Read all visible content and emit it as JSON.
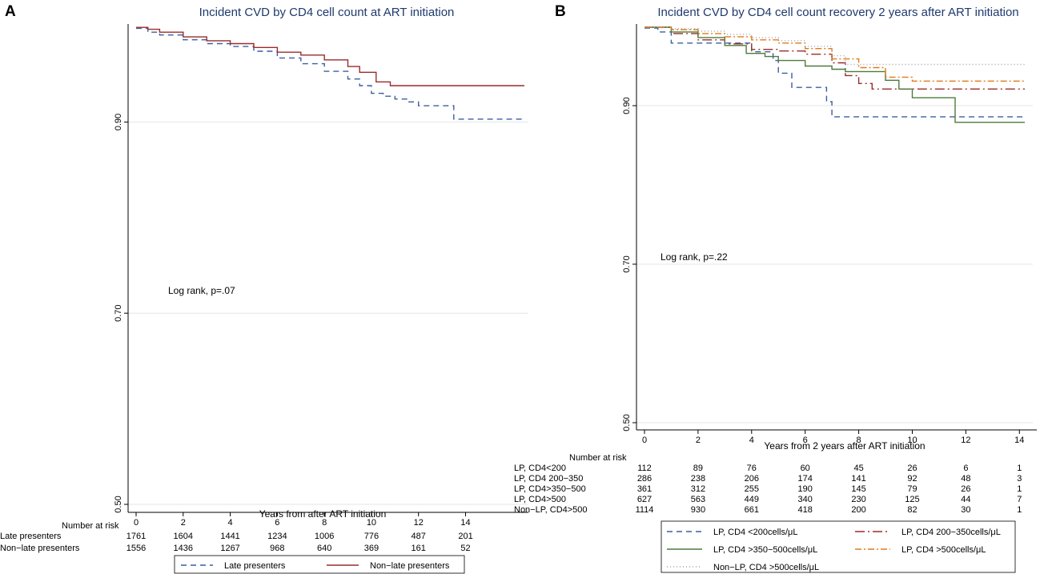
{
  "chart_data": [
    {
      "panel": "A",
      "type": "line",
      "subtype": "kaplan-meier",
      "title": "Incident CVD by CD4 cell count at ART initiation",
      "xlabel": "Years from after ART initiation",
      "ylabel": "",
      "xlim": [
        0,
        16.5
      ],
      "ylim": [
        0.5,
        1.0
      ],
      "xticks": [
        0,
        2,
        4,
        6,
        8,
        10,
        12,
        14
      ],
      "yticks": [
        0.5,
        0.7,
        0.9
      ],
      "ytick_labels": [
        "0.50",
        "0.70",
        "0.90"
      ],
      "annotation": "Log rank, p=.07",
      "series": [
        {
          "name": "Late presenters",
          "color": "#3b5fa0",
          "dash": "7,5",
          "x": [
            0,
            0.5,
            1,
            2,
            3,
            4,
            5,
            6,
            7,
            8,
            9,
            9.5,
            10,
            10.5,
            11,
            11.5,
            12,
            13,
            13.5,
            16.5
          ],
          "y": [
            0.998,
            0.994,
            0.991,
            0.986,
            0.982,
            0.979,
            0.974,
            0.967,
            0.961,
            0.953,
            0.945,
            0.938,
            0.93,
            0.927,
            0.924,
            0.921,
            0.917,
            0.917,
            0.903,
            0.903
          ]
        },
        {
          "name": "Non-late presenters",
          "color": "#9b2b2b",
          "dash": "",
          "x": [
            0,
            0.5,
            1,
            2,
            3,
            4,
            5,
            6,
            7,
            8,
            9,
            9.5,
            10,
            10.2,
            10.8,
            16.5
          ],
          "y": [
            0.999,
            0.997,
            0.994,
            0.989,
            0.985,
            0.982,
            0.978,
            0.973,
            0.97,
            0.965,
            0.958,
            0.952,
            0.952,
            0.942,
            0.938,
            0.938
          ]
        }
      ],
      "risk_table": {
        "heading": "Number at risk",
        "rows": [
          {
            "label": "Late presenters",
            "values": [
              "1761",
              "1604",
              "1441",
              "1234",
              "1006",
              "776",
              "487",
              "201"
            ]
          },
          {
            "label": "Non−late presenters",
            "values": [
              "1556",
              "1436",
              "1267",
              "968",
              "640",
              "369",
              "161",
              "52"
            ]
          }
        ]
      },
      "legend": [
        "Late presenters",
        "Non−late presenters"
      ]
    },
    {
      "panel": "B",
      "type": "line",
      "subtype": "kaplan-meier",
      "title": "Incident CVD by CD4 cell count recovery 2 years after ART initiation",
      "xlabel": "Years from 2 years after ART initiation",
      "ylabel": "",
      "xlim": [
        0,
        14.5
      ],
      "ylim": [
        0.5,
        1.0
      ],
      "xticks": [
        0,
        2,
        4,
        6,
        8,
        10,
        12,
        14
      ],
      "yticks": [
        0.5,
        0.7,
        0.9
      ],
      "ytick_labels": [
        "0.50",
        "0.70",
        "0.90"
      ],
      "annotation": "Log rank, p=.22",
      "series": [
        {
          "name": "LP, CD4 <200cells/μL",
          "color": "#3b5fa0",
          "dash": "7,5",
          "x": [
            0,
            0.5,
            1,
            3,
            4,
            4.8,
            5,
            5.5,
            6.5,
            6.8,
            7,
            14.2
          ],
          "y": [
            0.998,
            0.993,
            0.979,
            0.979,
            0.968,
            0.957,
            0.941,
            0.923,
            0.923,
            0.905,
            0.886,
            0.886
          ]
        },
        {
          "name": "LP, CD4 200−350cells/μL",
          "color": "#9b2b2b",
          "dash": "12,4,2,4",
          "x": [
            0,
            1,
            2,
            3,
            4,
            5,
            6,
            7,
            7.5,
            8,
            8.5,
            9,
            14.2
          ],
          "y": [
            0.999,
            0.991,
            0.983,
            0.978,
            0.971,
            0.969,
            0.965,
            0.954,
            0.938,
            0.928,
            0.921,
            0.921,
            0.921
          ]
        },
        {
          "name": "LP, CD4 >350−500cells/μL",
          "color": "#4f7a3a",
          "dash": "",
          "x": [
            0,
            1,
            2,
            3,
            3.8,
            4.5,
            5,
            6,
            7,
            7.5,
            8.5,
            9,
            9.5,
            10,
            11.6,
            14.2
          ],
          "y": [
            0.999,
            0.993,
            0.986,
            0.976,
            0.966,
            0.962,
            0.957,
            0.95,
            0.946,
            0.943,
            0.943,
            0.932,
            0.921,
            0.91,
            0.879,
            0.879
          ]
        },
        {
          "name": "LP, CD4 >500cells/μL",
          "color": "#e07b1a",
          "dash": "8,3,2,3",
          "x": [
            0,
            1,
            2,
            3,
            4,
            5,
            6,
            7,
            8,
            9,
            10,
            11,
            14.2
          ],
          "y": [
            0.999,
            0.996,
            0.991,
            0.987,
            0.983,
            0.979,
            0.972,
            0.959,
            0.948,
            0.936,
            0.931,
            0.931,
            0.931
          ]
        },
        {
          "name": "Non−LP, CD4 >500cells/μL",
          "color": "#a0a0a0",
          "dash": "1,3",
          "x": [
            0,
            1,
            2,
            3,
            4,
            5,
            6,
            7,
            7.5,
            8,
            14.2
          ],
          "y": [
            0.999,
            0.997,
            0.994,
            0.99,
            0.986,
            0.982,
            0.975,
            0.963,
            0.952,
            0.952,
            0.952
          ]
        }
      ],
      "risk_table": {
        "heading": "Number at risk",
        "rows": [
          {
            "label": "LP, CD4<200",
            "values": [
              "112",
              "89",
              "76",
              "60",
              "45",
              "26",
              "6",
              "1"
            ]
          },
          {
            "label": "LP, CD4 200−350",
            "values": [
              "286",
              "238",
              "206",
              "174",
              "141",
              "92",
              "48",
              "3"
            ]
          },
          {
            "label": "LP, CD4>350−500",
            "values": [
              "361",
              "312",
              "255",
              "190",
              "145",
              "79",
              "26",
              "1"
            ]
          },
          {
            "label": "LP, CD4>500",
            "values": [
              "627",
              "563",
              "449",
              "340",
              "230",
              "125",
              "44",
              "7"
            ]
          },
          {
            "label": "Non−LP, CD4>500",
            "values": [
              "1114",
              "930",
              "661",
              "418",
              "200",
              "82",
              "30",
              "1"
            ]
          }
        ]
      },
      "legend": [
        "LP, CD4 <200cells/μL",
        "LP, CD4 200−350cells/μL",
        "LP, CD4 >350−500cells/μL",
        "LP, CD4 >500cells/μL",
        "Non−LP, CD4 >500cells/μL"
      ]
    }
  ]
}
